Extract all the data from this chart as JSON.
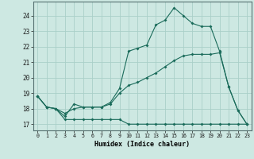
{
  "xlabel": "Humidex (Indice chaleur)",
  "bg_color": "#cde8e2",
  "grid_color": "#aacfc8",
  "line_color": "#1a6b5a",
  "line1_x": [
    0,
    1,
    2,
    3,
    4,
    5,
    6,
    7,
    8,
    9,
    10,
    11,
    12,
    13,
    14,
    15,
    16,
    17,
    18,
    19,
    20,
    21,
    22,
    23
  ],
  "line1_y": [
    18.8,
    18.1,
    18.0,
    17.5,
    18.3,
    18.1,
    18.1,
    18.1,
    18.4,
    19.3,
    21.7,
    21.9,
    22.1,
    23.4,
    23.7,
    24.5,
    24.0,
    23.5,
    23.3,
    23.3,
    21.7,
    19.4,
    17.9,
    17.0
  ],
  "line2_x": [
    0,
    1,
    2,
    3,
    4,
    5,
    6,
    7,
    8,
    9,
    10,
    11,
    12,
    13,
    14,
    15,
    16,
    17,
    18,
    19,
    20,
    21,
    22,
    23
  ],
  "line2_y": [
    18.8,
    18.1,
    18.0,
    17.7,
    18.0,
    18.1,
    18.1,
    18.1,
    18.3,
    19.0,
    19.5,
    19.7,
    20.0,
    20.3,
    20.7,
    21.1,
    21.4,
    21.5,
    21.5,
    21.5,
    21.6,
    19.4,
    17.9,
    17.0
  ],
  "line3_x": [
    0,
    1,
    2,
    3,
    4,
    5,
    6,
    7,
    8,
    9,
    10,
    11,
    12,
    13,
    14,
    15,
    16,
    17,
    18,
    19,
    20,
    21,
    22,
    23
  ],
  "line3_y": [
    18.8,
    18.1,
    18.0,
    17.3,
    17.3,
    17.3,
    17.3,
    17.3,
    17.3,
    17.3,
    17.0,
    17.0,
    17.0,
    17.0,
    17.0,
    17.0,
    17.0,
    17.0,
    17.0,
    17.0,
    17.0,
    17.0,
    17.0,
    17.0
  ],
  "ylim": [
    16.6,
    24.9
  ],
  "yticks": [
    17,
    18,
    19,
    20,
    21,
    22,
    23,
    24
  ],
  "xlim": [
    -0.5,
    23.5
  ],
  "xticks": [
    0,
    1,
    2,
    3,
    4,
    5,
    6,
    7,
    8,
    9,
    10,
    11,
    12,
    13,
    14,
    15,
    16,
    17,
    18,
    19,
    20,
    21,
    22,
    23
  ]
}
